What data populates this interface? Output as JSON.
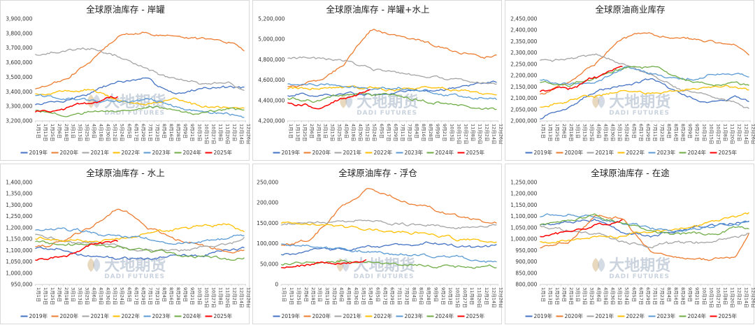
{
  "watermark": {
    "cn": "大地期货",
    "en": "DADI FUTURES"
  },
  "x_tick_labels": [
    "1月1日",
    "1月13日",
    "1月25日",
    "2月6日",
    "2月18日",
    "3月1日",
    "3月13日",
    "3月25日",
    "4月6日",
    "4月18日",
    "4月30日",
    "5月12日",
    "5月24日",
    "6月5日",
    "6月17日",
    "6月29日",
    "7月11日",
    "7月23日",
    "8月4日",
    "8月16日",
    "8月28日",
    "9月9日",
    "9月21日",
    "10月3日",
    "10月15日",
    "10月27日",
    "11月8日",
    "11月20日",
    "12月2日",
    "12月14日",
    "12月26日"
  ],
  "series_names": [
    "2019年",
    "2020年",
    "2021年",
    "2022年",
    "2023年",
    "2024年",
    "2025年"
  ],
  "series_colors": [
    "#4472c4",
    "#ed7d31",
    "#a5a5a5",
    "#ffc000",
    "#5b9bd5",
    "#70ad47",
    "#ff0000"
  ],
  "chart_data": [
    {
      "type": "line",
      "title": "全球原油库存 - 岸罐",
      "ylim": [
        3200000,
        3900000
      ],
      "yticks": [
        "3,200,000",
        "3,300,000",
        "3,400,000",
        "3,500,000",
        "3,600,000",
        "3,700,000",
        "3,800,000",
        "3,900,000"
      ],
      "x": [
        "1月1日",
        "2月18日",
        "4月6日",
        "5月24日",
        "7月11日",
        "8月28日",
        "10月15日",
        "12月2日",
        "12月26日"
      ],
      "series": [
        {
          "name": "2019年",
          "values": [
            3310000,
            3330000,
            3390000,
            3470000,
            3480000,
            3390000,
            3430000,
            3430000,
            3420000
          ]
        },
        {
          "name": "2020年",
          "values": [
            3420000,
            3470000,
            3610000,
            3790000,
            3800000,
            3780000,
            3760000,
            3740000,
            3680000
          ]
        },
        {
          "name": "2021年",
          "values": [
            3660000,
            3670000,
            3700000,
            3640000,
            3550000,
            3490000,
            3450000,
            3440000,
            3400000
          ]
        },
        {
          "name": "2022年",
          "values": [
            3390000,
            3410000,
            3410000,
            3340000,
            3320000,
            3340000,
            3300000,
            3280000,
            3270000
          ]
        },
        {
          "name": "2023年",
          "values": [
            3380000,
            3360000,
            3340000,
            3330000,
            3350000,
            3300000,
            3260000,
            3250000,
            3230000
          ]
        },
        {
          "name": "2024年",
          "values": [
            3270000,
            3230000,
            3270000,
            3280000,
            3300000,
            3280000,
            3260000,
            3280000,
            3270000
          ]
        },
        {
          "name": "2025年",
          "values": [
            3260000,
            3270000,
            3330000,
            3370000,
            null,
            null,
            null,
            null,
            null
          ]
        }
      ]
    },
    {
      "type": "line",
      "title": "全球原油库存 - 岸罐+水上",
      "ylim": [
        4200000,
        5200000
      ],
      "yticks": [
        "4,200,000",
        "4,400,000",
        "4,600,000",
        "4,800,000",
        "5,000,000",
        "5,200,000"
      ],
      "x": [
        "1月1日",
        "2月18日",
        "4月6日",
        "5月24日",
        "7月11日",
        "8月28日",
        "10月15日",
        "12月2日",
        "12月26日"
      ],
      "series": [
        {
          "name": "2019年",
          "values": [
            4450000,
            4440000,
            4460000,
            4450000,
            4470000,
            4480000,
            4520000,
            4580000,
            4560000
          ]
        },
        {
          "name": "2020年",
          "values": [
            4540000,
            4580000,
            4760000,
            5100000,
            5030000,
            4950000,
            4880000,
            4830000,
            4840000
          ]
        },
        {
          "name": "2021年",
          "values": [
            4820000,
            4790000,
            4790000,
            4700000,
            4660000,
            4620000,
            4600000,
            4580000,
            4570000
          ]
        },
        {
          "name": "2022年",
          "values": [
            4520000,
            4520000,
            4530000,
            4530000,
            4520000,
            4530000,
            4500000,
            4470000,
            4460000
          ]
        },
        {
          "name": "2023年",
          "values": [
            4560000,
            4540000,
            4530000,
            4510000,
            4520000,
            4490000,
            4460000,
            4430000,
            4420000
          ]
        },
        {
          "name": "2024年",
          "values": [
            4420000,
            4400000,
            4450000,
            4460000,
            4440000,
            4400000,
            4360000,
            4330000,
            4320000
          ]
        },
        {
          "name": "2025年",
          "values": [
            4380000,
            4330000,
            4430000,
            4520000,
            null,
            null,
            null,
            null,
            null
          ]
        }
      ]
    },
    {
      "type": "line",
      "title": "全球原油商业库存",
      "ylim": [
        2000000,
        2450000
      ],
      "yticks": [
        "2,000,000",
        "2,050,000",
        "2,100,000",
        "2,150,000",
        "2,200,000",
        "2,250,000",
        "2,300,000",
        "2,350,000",
        "2,400,000",
        "2,450,000"
      ],
      "x": [
        "1月1日",
        "2月18日",
        "4月6日",
        "5月24日",
        "7月11日",
        "8月28日",
        "10月15日",
        "12月2日",
        "12月26日"
      ],
      "series": [
        {
          "name": "2019年",
          "values": [
            2010000,
            2060000,
            2130000,
            2160000,
            2180000,
            2120000,
            2080000,
            2110000,
            2090000
          ]
        },
        {
          "name": "2020年",
          "values": [
            2120000,
            2170000,
            2250000,
            2370000,
            2390000,
            2370000,
            2360000,
            2350000,
            2290000
          ]
        },
        {
          "name": "2021年",
          "values": [
            2270000,
            2270000,
            2300000,
            2250000,
            2200000,
            2140000,
            2110000,
            2080000,
            2050000
          ]
        },
        {
          "name": "2022年",
          "values": [
            2060000,
            2090000,
            2110000,
            2130000,
            2120000,
            2140000,
            2150000,
            2150000,
            2140000
          ]
        },
        {
          "name": "2023年",
          "values": [
            2180000,
            2160000,
            2170000,
            2240000,
            2200000,
            2180000,
            2200000,
            2210000,
            2190000
          ]
        },
        {
          "name": "2024年",
          "values": [
            2170000,
            2150000,
            2180000,
            2230000,
            2240000,
            2190000,
            2160000,
            2160000,
            2150000
          ]
        },
        {
          "name": "2025年",
          "values": [
            2130000,
            2140000,
            2190000,
            2240000,
            null,
            null,
            null,
            null,
            null
          ]
        }
      ]
    },
    {
      "type": "line",
      "title": "全球原油库存 - 水上",
      "ylim": [
        950000,
        1400000
      ],
      "yticks": [
        "950,000",
        "1,000,000",
        "1,050,000",
        "1,100,000",
        "1,150,000",
        "1,200,000",
        "1,250,000",
        "1,300,000",
        "1,350,000",
        "1,400,000"
      ],
      "x": [
        "1月1日",
        "2月18日",
        "4月6日",
        "5月24日",
        "7月11日",
        "8月28日",
        "10月15日",
        "12月2日",
        "12月26日"
      ],
      "series": [
        {
          "name": "2019年",
          "values": [
            1110000,
            1100000,
            1080000,
            1070000,
            1060000,
            1070000,
            1080000,
            1100000,
            1110000
          ]
        },
        {
          "name": "2020年",
          "values": [
            1120000,
            1140000,
            1200000,
            1290000,
            1200000,
            1150000,
            1120000,
            1090000,
            1110000
          ]
        },
        {
          "name": "2021年",
          "values": [
            1170000,
            1140000,
            1130000,
            1110000,
            1100000,
            1110000,
            1120000,
            1130000,
            1160000
          ]
        },
        {
          "name": "2022年",
          "values": [
            1150000,
            1150000,
            1140000,
            1150000,
            1180000,
            1190000,
            1210000,
            1210000,
            1180000
          ]
        },
        {
          "name": "2023年",
          "values": [
            1190000,
            1200000,
            1180000,
            1170000,
            1150000,
            1130000,
            1140000,
            1160000,
            1170000
          ]
        },
        {
          "name": "2024年",
          "values": [
            1140000,
            1130000,
            1120000,
            1110000,
            1100000,
            1080000,
            1070000,
            1060000,
            1060000
          ]
        },
        {
          "name": "2025年",
          "values": [
            1060000,
            1070000,
            1120000,
            1140000,
            null,
            null,
            null,
            null,
            null
          ]
        }
      ]
    },
    {
      "type": "line",
      "title": "全球原油库存 - 浮仓",
      "ylim": [
        0,
        250000
      ],
      "yticks": [
        "0",
        "50,000",
        "100,000",
        "150,000",
        "200,000",
        "250,000"
      ],
      "x": [
        "1月1日",
        "2月18日",
        "4月6日",
        "5月24日",
        "7月11日",
        "8月28日",
        "10月15日",
        "12月2日",
        "12月26日"
      ],
      "series": [
        {
          "name": "2019年",
          "values": [
            75000,
            80000,
            85000,
            90000,
            95000,
            100000,
            95000,
            90000,
            95000
          ]
        },
        {
          "name": "2020年",
          "values": [
            95000,
            110000,
            180000,
            235000,
            215000,
            190000,
            170000,
            155000,
            150000
          ]
        },
        {
          "name": "2021年",
          "values": [
            145000,
            150000,
            155000,
            160000,
            150000,
            145000,
            140000,
            145000,
            150000
          ]
        },
        {
          "name": "2022年",
          "values": [
            150000,
            145000,
            140000,
            135000,
            130000,
            125000,
            115000,
            105000,
            100000
          ]
        },
        {
          "name": "2023年",
          "values": [
            100000,
            95000,
            85000,
            80000,
            75000,
            70000,
            65000,
            60000,
            55000
          ]
        },
        {
          "name": "2024年",
          "values": [
            50000,
            55000,
            60000,
            55000,
            50000,
            45000,
            45000,
            45000,
            45000
          ]
        },
        {
          "name": "2025年",
          "values": [
            40000,
            45000,
            50000,
            55000,
            null,
            null,
            null,
            null,
            null
          ]
        }
      ]
    },
    {
      "type": "line",
      "title": "全球原油库存 - 在途",
      "ylim": [
        800000,
        1250000
      ],
      "yticks": [
        "800,000",
        "850,000",
        "900,000",
        "950,000",
        "1,000,000",
        "1,050,000",
        "1,100,000",
        "1,150,000",
        "1,200,000",
        "1,250,000"
      ],
      "x": [
        "1月1日",
        "2月18日",
        "4月6日",
        "5月24日",
        "7月11日",
        "8月28日",
        "10月15日",
        "12月2日",
        "12月26日"
      ],
      "series": [
        {
          "name": "2019年",
          "values": [
            1060000,
            1070000,
            1080000,
            1030000,
            1010000,
            1040000,
            1060000,
            1070000,
            1080000
          ]
        },
        {
          "name": "2020年",
          "values": [
            960000,
            980000,
            1100000,
            1080000,
            940000,
            920000,
            910000,
            930000,
            1040000
          ]
        },
        {
          "name": "2021年",
          "values": [
            1060000,
            1040000,
            1020000,
            990000,
            970000,
            980000,
            990000,
            1010000,
            1030000
          ]
        },
        {
          "name": "2022年",
          "values": [
            990000,
            1000000,
            1010000,
            1020000,
            1030000,
            1050000,
            1070000,
            1090000,
            1110000
          ]
        },
        {
          "name": "2023年",
          "values": [
            1100000,
            1110000,
            1090000,
            1070000,
            1050000,
            1040000,
            1050000,
            1060000,
            1080000
          ]
        },
        {
          "name": "2024年",
          "values": [
            1060000,
            1080000,
            1100000,
            1070000,
            1040000,
            1020000,
            1030000,
            1050000,
            1040000
          ]
        },
        {
          "name": "2025年",
          "values": [
            1010000,
            1030000,
            1060000,
            1080000,
            null,
            null,
            null,
            null,
            null
          ]
        }
      ]
    }
  ]
}
